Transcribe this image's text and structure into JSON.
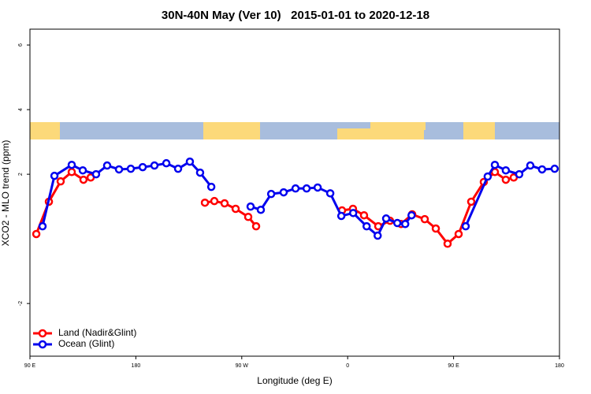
{
  "chart_data": {
    "type": "line",
    "title": "30N-40N May (Ver 10)   2015-01-01 to 2020-12-18",
    "x_label": "Longitude (deg E)",
    "y_label": "XCO2 - MLO trend (ppm)",
    "xlim": [
      90,
      540
    ],
    "xticks": [
      {
        "value": 90,
        "label": "90 E"
      },
      180,
      {
        "value": 270,
        "label": "90 W"
      },
      {
        "value": 360,
        "label": "0"
      },
      {
        "value": 450,
        "label": "90 E"
      },
      {
        "value": 540,
        "label": "180"
      }
    ],
    "ylim": [
      -3.63,
      6.49
    ],
    "yticks": [
      -2,
      2,
      4,
      6
    ],
    "legend": "bottom-left",
    "series": [
      {
        "name": "Land (Nadir&Glint)",
        "color": "#ff0000",
        "x": [
          95.4,
          106.1,
          116.1,
          125.5,
          135.5,
          141.6,
          null,
          238.7,
          246.7,
          255.4,
          264.8,
          275.5,
          282.2,
          null,
          355.2,
          364.5,
          373.9,
          386,
          396,
          405.4,
          414.8,
          425.5,
          434.9,
          444.9,
          454.3,
          465,
          475.7,
          485.1,
          494.4,
          501.1
        ],
        "values": [
          0.15,
          1.15,
          1.78,
          2.07,
          1.83,
          1.9,
          null,
          1.12,
          1.17,
          1.1,
          0.93,
          0.68,
          0.39,
          null,
          0.88,
          0.93,
          0.73,
          0.39,
          0.56,
          0.46,
          0.76,
          0.61,
          0.32,
          -0.15,
          0.15,
          1.15,
          1.76,
          2.07,
          1.83,
          1.9
        ]
      },
      {
        "name": "Ocean (Glint)",
        "color": "#0000ee",
        "x": [
          100.7,
          110.8,
          125.5,
          134.9,
          146.2,
          155.6,
          165.7,
          175.7,
          185.8,
          195.8,
          205.9,
          215.9,
          225.9,
          234.6,
          244.1,
          null,
          277.5,
          286.2,
          295,
          305.6,
          315.7,
          325.1,
          334.5,
          345.2,
          354.6,
          364.7,
          376.1,
          385.5,
          392.7,
          402.2,
          408.9,
          414.3,
          null,
          460.3,
          479,
          485.1,
          494.4,
          505.8,
          515.2,
          525.2,
          535.9
        ],
        "values": [
          0.39,
          1.95,
          2.29,
          2.12,
          2,
          2.27,
          2.15,
          2.17,
          2.22,
          2.27,
          2.34,
          2.17,
          2.39,
          2.05,
          1.61,
          null,
          1,
          0.9,
          1.39,
          1.44,
          1.56,
          1.56,
          1.59,
          1.41,
          0.71,
          0.8,
          0.39,
          0.1,
          0.63,
          0.49,
          0.46,
          0.73,
          null,
          0.39,
          1.93,
          2.29,
          2.12,
          2,
          2.27,
          2.15,
          2.17
        ]
      }
    ]
  }
}
